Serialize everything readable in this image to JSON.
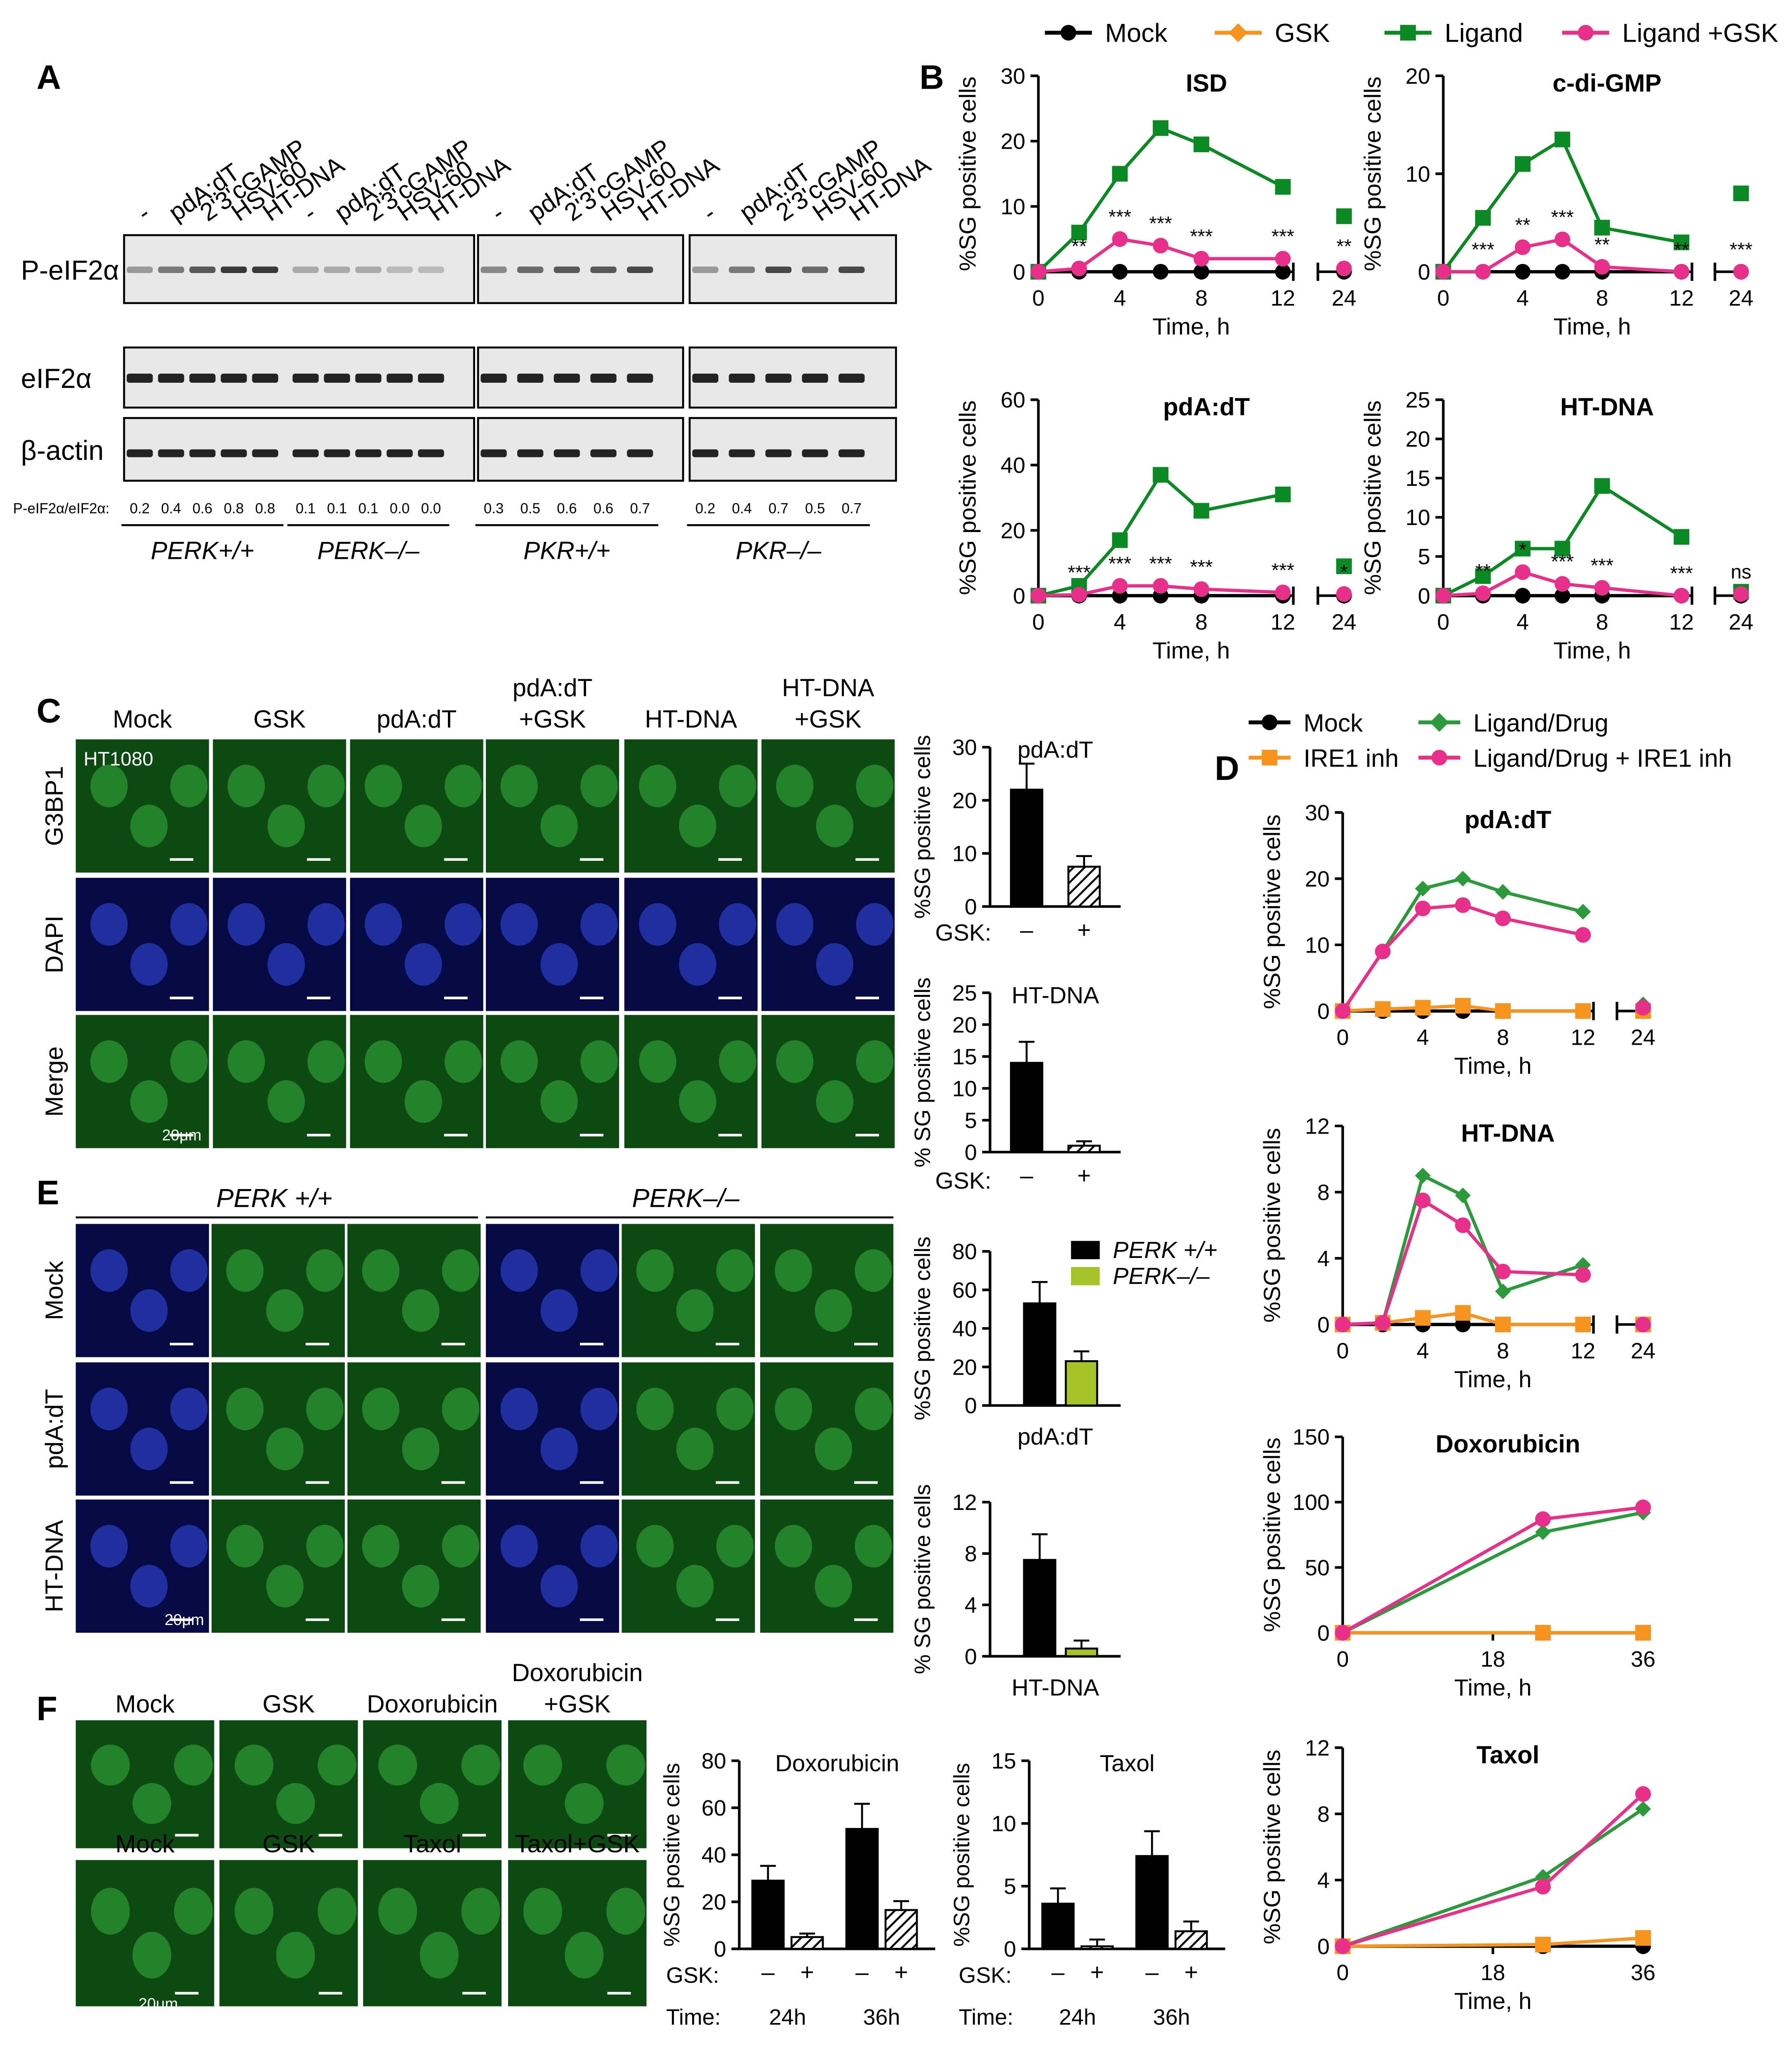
{
  "figure": {
    "panel_labels": [
      "A",
      "B",
      "C",
      "D",
      "E",
      "F"
    ],
    "legend_B": [
      "Mock",
      "GSK",
      "Ligand",
      "Ligand +GSK"
    ],
    "legend_D": [
      "Mock",
      "Ligand/Drug",
      "IRE1 inh",
      "Ligand/Drug + IRE1 inh"
    ],
    "colors": {
      "mock": "#000000",
      "gsk": "#f7941d",
      "ligand": "#0b8a23",
      "ligand_gsk": "#e8308a",
      "drug": "#2a9a3a",
      "lime": "#a6c427"
    }
  },
  "panelA": {
    "lanes": [
      "-",
      "pdA:dT",
      "2'3'cGAMP",
      "HSV-60",
      "HT-DNA"
    ],
    "rows": [
      "P-eIF2α",
      "eIF2α",
      "β-actin"
    ],
    "ratio_label": "P-eIF2α/eIF2α:",
    "groups": [
      {
        "name": "PERK+/+",
        "ratios": [
          "0.2",
          "0.4",
          "0.6",
          "0.8",
          "0.8"
        ]
      },
      {
        "name": "PERK–/–",
        "ratios": [
          "0.1",
          "0.1",
          "0.1",
          "0.0",
          "0.0"
        ]
      },
      {
        "name": "PKR+/+",
        "ratios": [
          "0.3",
          "0.5",
          "0.6",
          "0.6",
          "0.7"
        ]
      },
      {
        "name": "PKR–/–",
        "ratios": [
          "0.2",
          "0.4",
          "0.7",
          "0.5",
          "0.7"
        ]
      }
    ]
  },
  "panelC": {
    "columns": [
      "Mock",
      "GSK",
      "pdA:dT",
      "pdA:dT\n+GSK",
      "HT-DNA",
      "HT-DNA\n+GSK"
    ],
    "rows": [
      "G3BP1",
      "DAPI",
      "Merge"
    ],
    "cell_line": "HT1080",
    "scale": "20μm"
  },
  "panelE": {
    "groups": [
      "PERK +/+",
      "PERK–/–"
    ],
    "rows": [
      "Mock",
      "pdA:dT",
      "HT-DNA"
    ],
    "scale": "20μm"
  },
  "panelF": {
    "row1": [
      "Mock",
      "GSK",
      "Doxorubicin",
      "Doxorubicin\n+GSK"
    ],
    "row2": [
      "Mock",
      "GSK",
      "Taxol",
      "Taxol+GSK"
    ],
    "scale": "20μm"
  },
  "common": {
    "ylabel_sg": "%SG positive cells",
    "ylabel_sg2": "% SG positive cells",
    "xlabel_time": "Time, h",
    "gsk_label": "GSK:",
    "time_label": "Time:"
  },
  "chart_data": [
    {
      "id": "B-ISD",
      "type": "line",
      "title": "ISD",
      "x": [
        0,
        2,
        4,
        6,
        8,
        12,
        24
      ],
      "ylim": [
        0,
        30
      ],
      "yticks": [
        0,
        10,
        20,
        30
      ],
      "series": [
        {
          "name": "Mock",
          "values": [
            0,
            0,
            0,
            0,
            0,
            0,
            0
          ]
        },
        {
          "name": "Ligand",
          "values": [
            0,
            6,
            15,
            22,
            19.5,
            13,
            8.5
          ]
        },
        {
          "name": "Ligand +GSK",
          "values": [
            0,
            0.5,
            5,
            4,
            2,
            2,
            0.5
          ]
        }
      ],
      "stars": [
        [
          "2",
          "**"
        ],
        [
          "4",
          "***"
        ],
        [
          "6",
          "***"
        ],
        [
          "8",
          "***"
        ],
        [
          "12",
          "***"
        ],
        [
          "24",
          "**"
        ]
      ]
    },
    {
      "id": "B-cdiGMP",
      "type": "line",
      "title": "c-di-GMP",
      "x": [
        0,
        2,
        4,
        6,
        8,
        12,
        24
      ],
      "ylim": [
        0,
        20
      ],
      "yticks": [
        0,
        10,
        20
      ],
      "series": [
        {
          "name": "Mock",
          "values": [
            0,
            0,
            0,
            0,
            0,
            0,
            0
          ]
        },
        {
          "name": "Ligand",
          "values": [
            0,
            5.5,
            11,
            13.5,
            4.5,
            3,
            8
          ]
        },
        {
          "name": "Ligand +GSK",
          "values": [
            0,
            0,
            2.5,
            3.3,
            0.5,
            0,
            0
          ]
        }
      ],
      "stars": [
        [
          "2",
          "***"
        ],
        [
          "4",
          "**"
        ],
        [
          "6",
          "***"
        ],
        [
          "8",
          "**"
        ],
        [
          "12",
          "**"
        ],
        [
          "24",
          "***"
        ]
      ]
    },
    {
      "id": "B-pdAdT",
      "type": "line",
      "title": "pdA:dT",
      "x": [
        0,
        2,
        4,
        6,
        8,
        12,
        24
      ],
      "ylim": [
        0,
        60
      ],
      "yticks": [
        0,
        20,
        40,
        60
      ],
      "series": [
        {
          "name": "Mock",
          "values": [
            0,
            0,
            0,
            0,
            0,
            0,
            0
          ]
        },
        {
          "name": "Ligand",
          "values": [
            0,
            3,
            17,
            37,
            26,
            31,
            9
          ]
        },
        {
          "name": "Ligand +GSK",
          "values": [
            0,
            0.3,
            3,
            3,
            2,
            1,
            0.5
          ]
        }
      ],
      "stars": [
        [
          "2",
          "***"
        ],
        [
          "4",
          "***"
        ],
        [
          "6",
          "***"
        ],
        [
          "8",
          "***"
        ],
        [
          "12",
          "***"
        ],
        [
          "24",
          "*"
        ]
      ]
    },
    {
      "id": "B-HTDNA",
      "type": "line",
      "title": "HT-DNA",
      "x": [
        0,
        2,
        4,
        6,
        8,
        12,
        24
      ],
      "ylim": [
        0,
        25
      ],
      "yticks": [
        0,
        5,
        10,
        15,
        20,
        25
      ],
      "series": [
        {
          "name": "Mock",
          "values": [
            0,
            0,
            0,
            0,
            0,
            0,
            0
          ]
        },
        {
          "name": "Ligand",
          "values": [
            0,
            2.5,
            6,
            6,
            14,
            7.5,
            0.5
          ]
        },
        {
          "name": "Ligand +GSK",
          "values": [
            0,
            0.3,
            3,
            1.5,
            1,
            0,
            0.2
          ]
        }
      ],
      "stars": [
        [
          "2",
          "**"
        ],
        [
          "4",
          "*"
        ],
        [
          "6",
          "***"
        ],
        [
          "8",
          "***"
        ],
        [
          "12",
          "***"
        ],
        [
          "24",
          "ns"
        ]
      ]
    },
    {
      "id": "C-pdAdT",
      "type": "bar",
      "title": "pdA:dT",
      "categories": [
        "–",
        "+"
      ],
      "values": [
        22,
        7.5
      ],
      "ylim": [
        0,
        30
      ],
      "yticks": [
        0,
        10,
        20,
        30
      ]
    },
    {
      "id": "C-HTDNA",
      "type": "bar",
      "title": "HT-DNA",
      "categories": [
        "–",
        "+"
      ],
      "values": [
        14,
        1
      ],
      "ylim": [
        0,
        25
      ],
      "yticks": [
        0,
        5,
        10,
        15,
        20,
        25
      ]
    },
    {
      "id": "D-pdAdT",
      "type": "line",
      "title": "pdA:dT",
      "x": [
        0,
        2,
        4,
        6,
        8,
        12,
        24
      ],
      "ylim": [
        0,
        30
      ],
      "yticks": [
        0,
        10,
        20,
        30
      ],
      "series": [
        {
          "name": "Mock",
          "values": [
            0,
            0,
            0,
            0,
            0,
            0,
            0
          ]
        },
        {
          "name": "IRE1 inh",
          "values": [
            0,
            0.3,
            0.5,
            0.8,
            0,
            0,
            0
          ]
        },
        {
          "name": "Ligand/Drug",
          "values": [
            0,
            9,
            18.5,
            20,
            18,
            15,
            1
          ]
        },
        {
          "name": "Ligand/Drug + IRE1 inh",
          "values": [
            0,
            9,
            15.5,
            16,
            14,
            11.5,
            0.5
          ]
        }
      ]
    },
    {
      "id": "D-HTDNA",
      "type": "line",
      "title": "HT-DNA",
      "x": [
        0,
        2,
        4,
        6,
        8,
        12,
        24
      ],
      "ylim": [
        0,
        12
      ],
      "yticks": [
        0,
        4,
        8,
        12
      ],
      "series": [
        {
          "name": "Mock",
          "values": [
            0,
            0,
            0,
            0,
            0,
            0,
            0
          ]
        },
        {
          "name": "IRE1 inh",
          "values": [
            0,
            0.1,
            0.4,
            0.7,
            0,
            0,
            0
          ]
        },
        {
          "name": "Ligand/Drug",
          "values": [
            0,
            0.1,
            9,
            7.8,
            2,
            3.6,
            0
          ]
        },
        {
          "name": "Ligand/Drug + IRE1 inh",
          "values": [
            0,
            0.1,
            7.5,
            6,
            3.2,
            3,
            0
          ]
        }
      ]
    },
    {
      "id": "D-Doxorubicin",
      "type": "line",
      "title": "Doxorubicin",
      "x": [
        0,
        24,
        36
      ],
      "ylim": [
        0,
        150
      ],
      "yticks": [
        0,
        50,
        100,
        150
      ],
      "series": [
        {
          "name": "Mock",
          "values": [
            0,
            0,
            0
          ]
        },
        {
          "name": "IRE1 inh",
          "values": [
            0,
            0,
            0
          ]
        },
        {
          "name": "Ligand/Drug",
          "values": [
            0,
            77,
            92
          ]
        },
        {
          "name": "Ligand/Drug + IRE1 inh",
          "values": [
            0,
            87,
            96
          ]
        }
      ]
    },
    {
      "id": "D-Taxol",
      "type": "line",
      "title": "Taxol",
      "x": [
        0,
        24,
        36
      ],
      "ylim": [
        0,
        12
      ],
      "yticks": [
        0,
        4,
        8,
        12
      ],
      "series": [
        {
          "name": "Mock",
          "values": [
            0,
            0,
            0
          ]
        },
        {
          "name": "IRE1 inh",
          "values": [
            0,
            0.1,
            0.5
          ]
        },
        {
          "name": "Ligand/Drug",
          "values": [
            0,
            4.2,
            8.3
          ]
        },
        {
          "name": "Ligand/Drug + IRE1 inh",
          "values": [
            0,
            3.6,
            9.2
          ]
        }
      ]
    },
    {
      "id": "E-pdAdT",
      "type": "bar",
      "xlabel": "pdA:dT",
      "categories": [
        "PERK +/+",
        "PERK–/–"
      ],
      "values": [
        53,
        23
      ],
      "ylim": [
        0,
        80
      ],
      "yticks": [
        0,
        20,
        40,
        60,
        80
      ]
    },
    {
      "id": "E-HTDNA",
      "type": "bar",
      "xlabel": "HT-DNA",
      "categories": [
        "PERK +/+",
        "PERK–/–"
      ],
      "values": [
        7.5,
        0.6
      ],
      "ylim": [
        0,
        12
      ],
      "yticks": [
        0,
        4,
        8,
        12
      ]
    },
    {
      "id": "F-Doxorubicin",
      "type": "bar",
      "title": "Doxorubicin",
      "categories": [
        "24h –",
        "24h +",
        "36h –",
        "36h +"
      ],
      "values": [
        29,
        5,
        51,
        16.5
      ],
      "ylim": [
        0,
        80
      ],
      "yticks": [
        0,
        20,
        40,
        60,
        80
      ]
    },
    {
      "id": "F-Taxol",
      "type": "bar",
      "title": "Taxol",
      "categories": [
        "24h –",
        "24h +",
        "36h –",
        "36h +"
      ],
      "values": [
        3.6,
        0.2,
        7.4,
        1.4
      ],
      "ylim": [
        0,
        15
      ],
      "yticks": [
        0,
        5,
        10,
        15
      ]
    }
  ]
}
